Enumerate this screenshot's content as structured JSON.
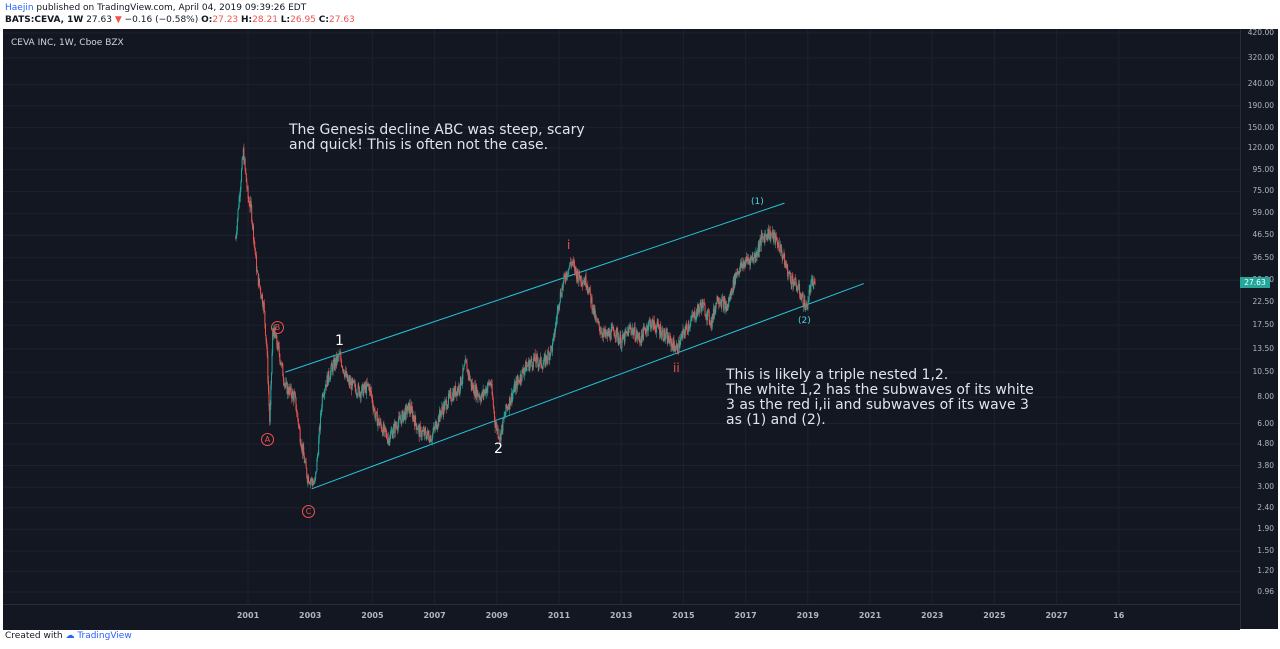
{
  "header": {
    "author": "Haejin",
    "published": "published on TradingView.com, April 04, 2019 09:39:26 EDT",
    "symbol_line": {
      "symbol": "BATS:CEVA, 1W",
      "last": "27.63",
      "change": "−0.16 (−0.58%)",
      "open_label": "O:",
      "open": "27.23",
      "high_label": "H:",
      "high": "28.21",
      "low_label": "L:",
      "low": "26.95",
      "close_label": "C:",
      "close": "27.63"
    }
  },
  "chart": {
    "title": "CEVA INC, 1W, Cboe BZX",
    "last_price": "27.63",
    "price_axis": [
      "420.00",
      "320.00",
      "240.00",
      "190.00",
      "150.00",
      "120.00",
      "95.00",
      "75.00",
      "59.00",
      "46.50",
      "36.50",
      "28.50",
      "22.50",
      "17.50",
      "13.50",
      "10.50",
      "8.00",
      "6.00",
      "4.80",
      "3.80",
      "3.00",
      "2.40",
      "1.90",
      "1.50",
      "1.20",
      "0.96"
    ],
    "time_axis": [
      "2001",
      "2003",
      "2005",
      "2007",
      "2009",
      "2011",
      "2013",
      "2015",
      "2017",
      "2019",
      "2021",
      "2023",
      "2025",
      "2027",
      "16"
    ],
    "colors": {
      "up": "#26a69a",
      "down": "#ef5350",
      "channel": "#26c6da",
      "background": "#131722"
    },
    "annotations": {
      "note_top": "The Genesis decline ABC was steep, scary\nand quick! This is often not the case.",
      "note_right": "This is likely a triple nested 1,2.\nThe white 1,2 has the subwaves of its white\n3 as the red i,ii and subwaves of its wave 3\nas (1) and (2).",
      "w1": "1",
      "w2": "2",
      "ri": "i",
      "rii": "ii",
      "c1": "(1)",
      "c2": "(2)",
      "A": "A",
      "B": "B",
      "C": "C"
    },
    "price_path": [
      [
        2000.6,
        45
      ],
      [
        2000.75,
        80
      ],
      [
        2000.85,
        115
      ],
      [
        2001.0,
        70
      ],
      [
        2001.1,
        62
      ],
      [
        2001.3,
        30
      ],
      [
        2001.5,
        22
      ],
      [
        2001.6,
        14
      ],
      [
        2001.7,
        6
      ],
      [
        2001.8,
        17
      ],
      [
        2002.0,
        13
      ],
      [
        2002.2,
        9
      ],
      [
        2002.5,
        8
      ],
      [
        2002.7,
        5
      ],
      [
        2002.9,
        3.4
      ],
      [
        2003.15,
        3.1
      ],
      [
        2003.25,
        4.5
      ],
      [
        2003.4,
        8.5
      ],
      [
        2003.7,
        11
      ],
      [
        2003.95,
        12.5
      ],
      [
        2004.2,
        9.5
      ],
      [
        2004.6,
        8.5
      ],
      [
        2004.9,
        9
      ],
      [
        2005.1,
        6.5
      ],
      [
        2005.5,
        5.1
      ],
      [
        2005.8,
        6
      ],
      [
        2006.2,
        7.2
      ],
      [
        2006.5,
        5.5
      ],
      [
        2006.9,
        5.2
      ],
      [
        2007.2,
        6.8
      ],
      [
        2007.5,
        8
      ],
      [
        2007.8,
        9
      ],
      [
        2008.0,
        11.5
      ],
      [
        2008.2,
        9
      ],
      [
        2008.5,
        8
      ],
      [
        2008.8,
        9.5
      ],
      [
        2008.95,
        6
      ],
      [
        2009.1,
        5.2
      ],
      [
        2009.3,
        7
      ],
      [
        2009.6,
        9
      ],
      [
        2009.9,
        11
      ],
      [
        2010.2,
        12
      ],
      [
        2010.5,
        11.5
      ],
      [
        2010.8,
        14
      ],
      [
        2011.0,
        23
      ],
      [
        2011.2,
        30
      ],
      [
        2011.4,
        35
      ],
      [
        2011.6,
        30
      ],
      [
        2011.9,
        28
      ],
      [
        2012.2,
        18
      ],
      [
        2012.5,
        15.5
      ],
      [
        2012.8,
        16.5
      ],
      [
        2013.0,
        14.5
      ],
      [
        2013.3,
        17
      ],
      [
        2013.6,
        15
      ],
      [
        2013.9,
        18
      ],
      [
        2014.2,
        17
      ],
      [
        2014.5,
        15
      ],
      [
        2014.8,
        13.5
      ],
      [
        2015.0,
        16
      ],
      [
        2015.3,
        19
      ],
      [
        2015.6,
        22
      ],
      [
        2015.9,
        18
      ],
      [
        2016.1,
        24
      ],
      [
        2016.4,
        21
      ],
      [
        2016.7,
        31
      ],
      [
        2017.0,
        35
      ],
      [
        2017.3,
        37
      ],
      [
        2017.5,
        44
      ],
      [
        2017.7,
        48
      ],
      [
        2017.9,
        46
      ],
      [
        2018.1,
        41
      ],
      [
        2018.4,
        30
      ],
      [
        2018.7,
        26
      ],
      [
        2018.95,
        21
      ],
      [
        2019.1,
        27
      ],
      [
        2019.25,
        28
      ]
    ]
  },
  "footer": {
    "created_with": "Created with",
    "brand": "TradingView"
  }
}
